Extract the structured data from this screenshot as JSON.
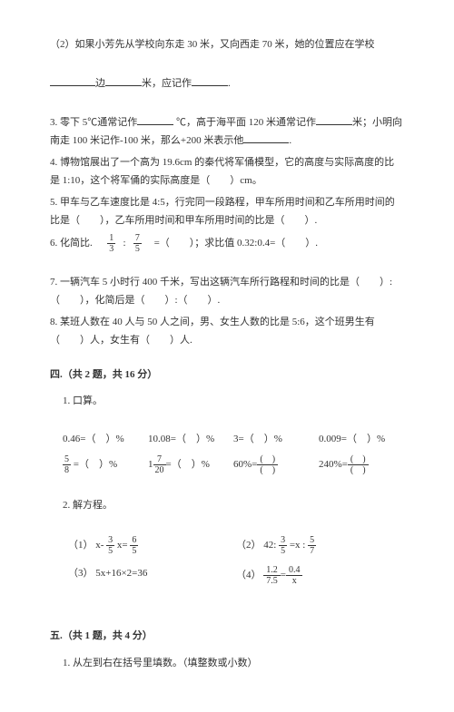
{
  "q2": {
    "text": "（2）如果小芳先从学校向东走 30 米，又向西走 70 米，她的位置应在学校",
    "line2a": "边",
    "line2b": "米，应记作",
    "line2c": "."
  },
  "q3": {
    "a": "3. 零下 5℃通常记作",
    "b": " ℃，高于海平面 120 米通常记作",
    "c": "米；小明向南走 100 米记作-100 米，那么+200 米表示他",
    "d": "."
  },
  "q4": {
    "a": "4. 博物馆展出了一个高为 19.6cm 的秦代将军俑模型，它的高度与实际高度的比是 1:10，这个将军俑的实际高度是（　　）cm。"
  },
  "q5": {
    "a": "5. 甲车与乙车速度比是 4:5，行完同一段路程，甲车所用时间和乙车所用时间的比是（　　），乙车所用时间和甲车所用时间的比是（　　）."
  },
  "q6": {
    "a": "6. 化简比.",
    "b": "=（　　）；求比值 0.32:0.4=（　　）."
  },
  "q7": {
    "a": "7. 一辆汽车 5 小时行 400 千米，写出这辆汽车所行路程和时间的比是（　　）:（　　），化简后是（　　）:（　　）."
  },
  "q8": {
    "a": "8. 某班人数在 40 人与 50 人之间，男、女生人数的比是 5:6，这个班男生有（　　）人，女生有（　　）人."
  },
  "sec4": "四.（共 2 题，共 16 分）",
  "s4q1": "1. 口算。",
  "calc": {
    "r1": [
      "0.46=（　）%",
      "10.08=（　）%",
      "3=（　）%",
      "0.009=（　）%"
    ],
    "r2a": " =（　）%",
    "r2b": "=（　）%",
    "r2c": "60%=",
    "r2d": "240%="
  },
  "s4q2": "2. 解方程。",
  "eq": {
    "e1a": "（1） x-",
    "e1b": " x=",
    "e2a": "（2） 42:",
    "e2b": " =x :",
    "e3": "（3） 5x+16×2=36",
    "e4a": "（4） ",
    "e4b": "="
  },
  "sec5": "五.（共 1 题，共 4 分）",
  "s5q1": "1. 从左到右在括号里填数。（填整数或小数）"
}
